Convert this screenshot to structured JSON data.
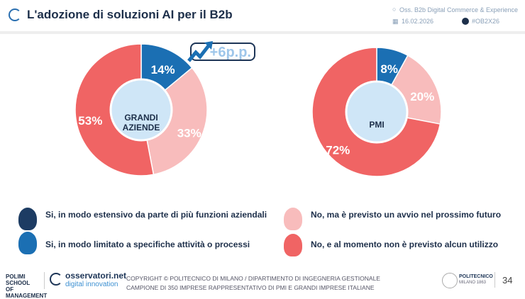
{
  "header": {
    "title": "L'adozione di soluzioni AI per il B2b",
    "source": "Oss. B2b Digital Commerce & Experience",
    "date": "16.02.2026",
    "hashtag": "#OB2X26"
  },
  "colors": {
    "estensivo": "#1d3c63",
    "limitato": "#1b6fb3",
    "previsto": "#f8bcbc",
    "non_previsto": "#f06464"
  },
  "chart_data": [
    {
      "type": "pie",
      "title": "GRANDI AZIENDE",
      "center_label": [
        "GRANDI",
        "AZIENDE"
      ],
      "slices": [
        {
          "name": "Si, in modo limitato a specifiche attività o processi",
          "value": 14,
          "label": "14%"
        },
        {
          "name": "No, ma è previsto un avvio nel prossimo futuro",
          "value": 33,
          "label": "33%"
        },
        {
          "name": "No, e al momento non è previsto alcun utilizzo",
          "value": 53,
          "label": "53%"
        }
      ],
      "annotation": "+6p.p."
    },
    {
      "type": "pie",
      "title": "PMI",
      "center_label": [
        "PMI"
      ],
      "slices": [
        {
          "name": "Si, in modo limitato a specifiche attività o processi",
          "value": 8,
          "label": "8%"
        },
        {
          "name": "No, ma è previsto un avvio nel prossimo futuro",
          "value": 20,
          "label": "20%"
        },
        {
          "name": "No, e al momento non è previsto alcun utilizzo",
          "value": 72,
          "label": "72%"
        }
      ]
    }
  ],
  "legend": [
    {
      "label": "Si, in modo estensivo da parte di più funzioni aziendali",
      "icon": "airplane-icon"
    },
    {
      "label": "No, ma è previsto un avvio nel prossimo futuro",
      "icon": "car-icon"
    },
    {
      "label": "Si, in modo limitato a specifiche attività o processi",
      "icon": "train-icon"
    },
    {
      "label": "No, e al momento non è previsto alcun utilizzo",
      "icon": "person-icon"
    }
  ],
  "footer": {
    "polimi": "POLIMI SCHOOL OF MANAGEMENT",
    "brand1": "osservatori.net",
    "brand2": "digital innovation",
    "copyright": "COPYRIGHT © POLITECNICO DI MILANO / DIPARTIMENTO DI INGEGNERIA GESTIONALE",
    "sample": "CAMPIONE DI 350 IMPRESE RAPPRESENTATIVO DI PMI E GRANDI IMPRESE ITALIANE",
    "politecnico": "POLITECNICO",
    "milano": "MILANO 1863",
    "page": "34"
  }
}
